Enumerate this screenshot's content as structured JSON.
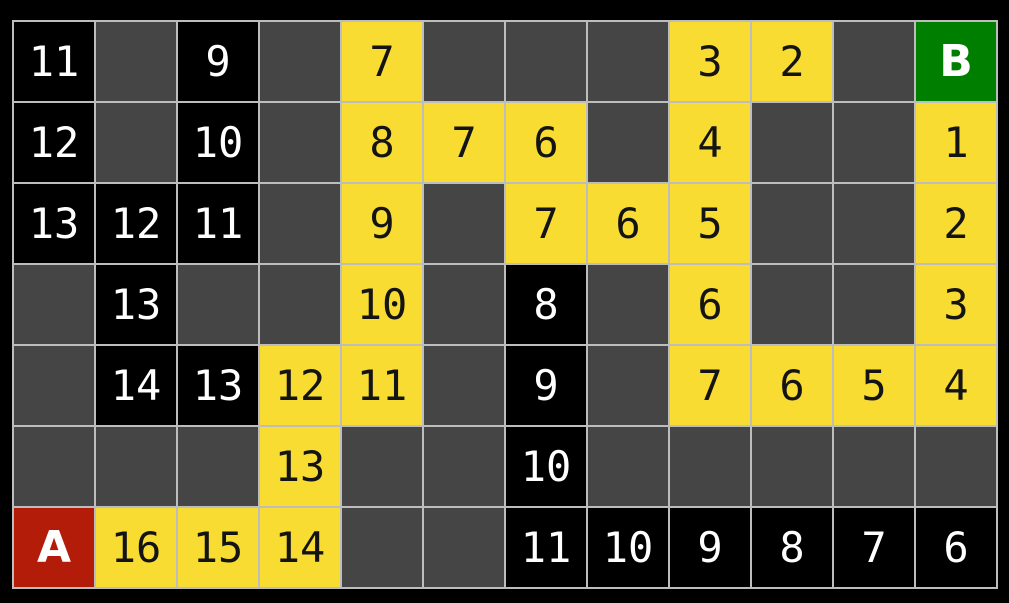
{
  "colors": {
    "background": "#000000",
    "gridline": "#bdbdbd",
    "empty_cell": "#454545",
    "visited_cell": "#000000",
    "path_cell": "#f8dc32",
    "start_cell": "#b41c0a",
    "goal_cell": "#007e00",
    "visited_text": "#ffffff",
    "path_text": "#141414"
  },
  "grid": {
    "columns": 12,
    "row_count": 7,
    "start_label": "A",
    "goal_label": "B",
    "rows": [
      {
        "cells": [
          {
            "type": "visited",
            "label": "11"
          },
          {
            "type": "empty",
            "label": ""
          },
          {
            "type": "visited",
            "label": "9"
          },
          {
            "type": "empty",
            "label": ""
          },
          {
            "type": "path",
            "label": "7"
          },
          {
            "type": "empty",
            "label": ""
          },
          {
            "type": "empty",
            "label": ""
          },
          {
            "type": "empty",
            "label": ""
          },
          {
            "type": "path",
            "label": "3"
          },
          {
            "type": "path",
            "label": "2"
          },
          {
            "type": "empty",
            "label": ""
          },
          {
            "type": "goal",
            "label": "B"
          }
        ]
      },
      {
        "cells": [
          {
            "type": "visited",
            "label": "12"
          },
          {
            "type": "empty",
            "label": ""
          },
          {
            "type": "visited",
            "label": "10"
          },
          {
            "type": "empty",
            "label": ""
          },
          {
            "type": "path",
            "label": "8"
          },
          {
            "type": "path",
            "label": "7"
          },
          {
            "type": "path",
            "label": "6"
          },
          {
            "type": "empty",
            "label": ""
          },
          {
            "type": "path",
            "label": "4"
          },
          {
            "type": "empty",
            "label": ""
          },
          {
            "type": "empty",
            "label": ""
          },
          {
            "type": "path",
            "label": "1"
          }
        ]
      },
      {
        "cells": [
          {
            "type": "visited",
            "label": "13"
          },
          {
            "type": "visited",
            "label": "12"
          },
          {
            "type": "visited",
            "label": "11"
          },
          {
            "type": "empty",
            "label": ""
          },
          {
            "type": "path",
            "label": "9"
          },
          {
            "type": "empty",
            "label": ""
          },
          {
            "type": "path",
            "label": "7"
          },
          {
            "type": "path",
            "label": "6"
          },
          {
            "type": "path",
            "label": "5"
          },
          {
            "type": "empty",
            "label": ""
          },
          {
            "type": "empty",
            "label": ""
          },
          {
            "type": "path",
            "label": "2"
          }
        ]
      },
      {
        "cells": [
          {
            "type": "empty",
            "label": ""
          },
          {
            "type": "visited",
            "label": "13"
          },
          {
            "type": "empty",
            "label": ""
          },
          {
            "type": "empty",
            "label": ""
          },
          {
            "type": "path",
            "label": "10"
          },
          {
            "type": "empty",
            "label": ""
          },
          {
            "type": "visited",
            "label": "8"
          },
          {
            "type": "empty",
            "label": ""
          },
          {
            "type": "path",
            "label": "6"
          },
          {
            "type": "empty",
            "label": ""
          },
          {
            "type": "empty",
            "label": ""
          },
          {
            "type": "path",
            "label": "3"
          }
        ]
      },
      {
        "cells": [
          {
            "type": "empty",
            "label": ""
          },
          {
            "type": "visited",
            "label": "14"
          },
          {
            "type": "visited",
            "label": "13"
          },
          {
            "type": "path",
            "label": "12"
          },
          {
            "type": "path",
            "label": "11"
          },
          {
            "type": "empty",
            "label": ""
          },
          {
            "type": "visited",
            "label": "9"
          },
          {
            "type": "empty",
            "label": ""
          },
          {
            "type": "path",
            "label": "7"
          },
          {
            "type": "path",
            "label": "6"
          },
          {
            "type": "path",
            "label": "5"
          },
          {
            "type": "path",
            "label": "4"
          }
        ]
      },
      {
        "cells": [
          {
            "type": "empty",
            "label": ""
          },
          {
            "type": "empty",
            "label": ""
          },
          {
            "type": "empty",
            "label": ""
          },
          {
            "type": "path",
            "label": "13"
          },
          {
            "type": "empty",
            "label": ""
          },
          {
            "type": "empty",
            "label": ""
          },
          {
            "type": "visited",
            "label": "10"
          },
          {
            "type": "empty",
            "label": ""
          },
          {
            "type": "empty",
            "label": ""
          },
          {
            "type": "empty",
            "label": ""
          },
          {
            "type": "empty",
            "label": ""
          },
          {
            "type": "empty",
            "label": ""
          }
        ]
      },
      {
        "cells": [
          {
            "type": "start",
            "label": "A"
          },
          {
            "type": "path",
            "label": "16"
          },
          {
            "type": "path",
            "label": "15"
          },
          {
            "type": "path",
            "label": "14"
          },
          {
            "type": "empty",
            "label": ""
          },
          {
            "type": "empty",
            "label": ""
          },
          {
            "type": "visited",
            "label": "11"
          },
          {
            "type": "visited",
            "label": "10"
          },
          {
            "type": "visited",
            "label": "9"
          },
          {
            "type": "visited",
            "label": "8"
          },
          {
            "type": "visited",
            "label": "7"
          },
          {
            "type": "visited",
            "label": "6"
          }
        ]
      }
    ]
  }
}
